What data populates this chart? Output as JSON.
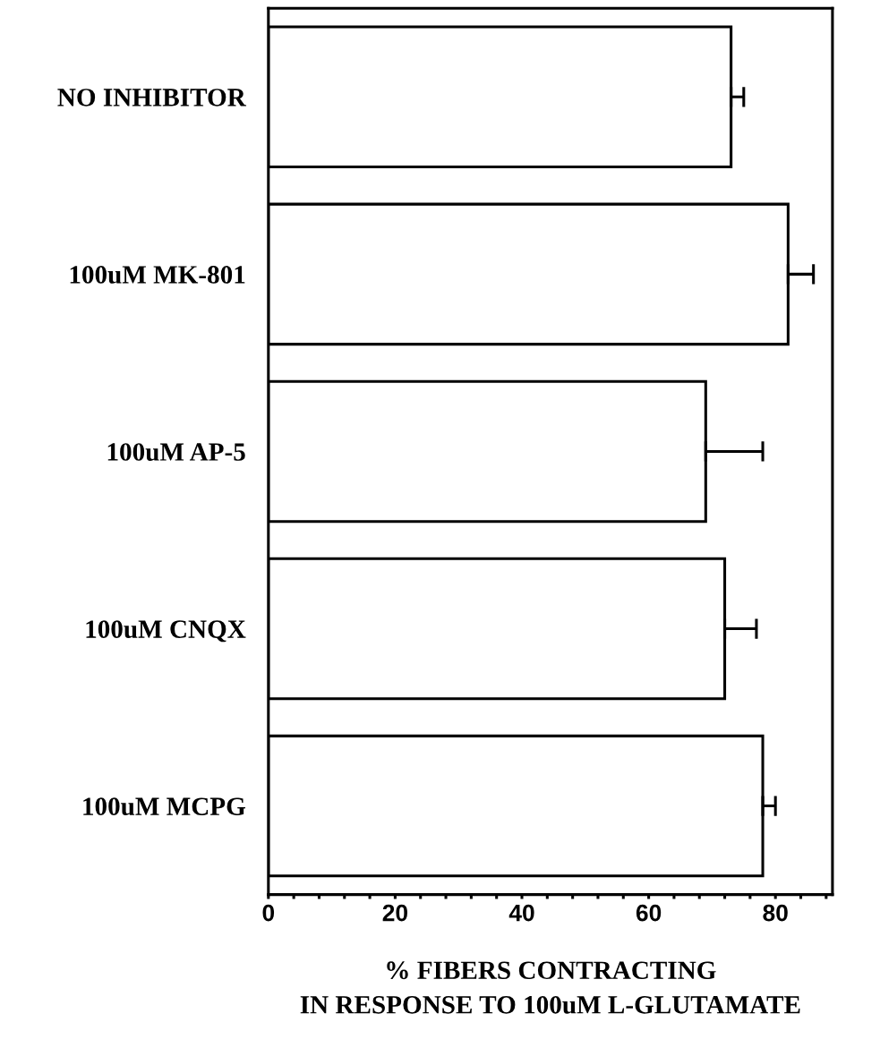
{
  "chart_data": {
    "type": "bar",
    "orientation": "horizontal",
    "categories": [
      "NO INHIBITOR",
      "100uM MK-801",
      "100uM AP-5",
      "100uM CNQX",
      "100uM MCPG"
    ],
    "values": [
      73,
      82,
      69,
      72,
      78
    ],
    "errors": [
      [
        73,
        75
      ],
      [
        82,
        86
      ],
      [
        69,
        78
      ],
      [
        72,
        77
      ],
      [
        78,
        80
      ]
    ],
    "color": "#ffffff",
    "xlabel": "% FIBERS CONTRACTING\nIN RESPONSE TO 100uM L-GLUTAMATE",
    "xlim": [
      0,
      89
    ],
    "xticks": [
      0,
      {
        "value": 4,
        "label": null
      },
      {
        "value": 8,
        "label": null
      },
      {
        "value": 12,
        "label": null
      },
      {
        "value": 16,
        "label": null
      },
      20,
      {
        "value": 24,
        "label": null
      },
      {
        "value": 28,
        "label": null
      },
      {
        "value": 32,
        "label": null
      },
      {
        "value": 36,
        "label": null
      },
      40,
      {
        "value": 44,
        "label": null
      },
      {
        "value": 48,
        "label": null
      },
      {
        "value": 52,
        "label": null
      },
      {
        "value": 56,
        "label": null
      },
      60,
      {
        "value": 64,
        "label": null
      },
      {
        "value": 68,
        "label": null
      },
      {
        "value": 72,
        "label": null
      },
      {
        "value": 76,
        "label": null
      },
      80,
      {
        "value": 84,
        "label": null
      },
      {
        "value": 88,
        "label": null
      }
    ],
    "grid": false,
    "legend": false
  }
}
